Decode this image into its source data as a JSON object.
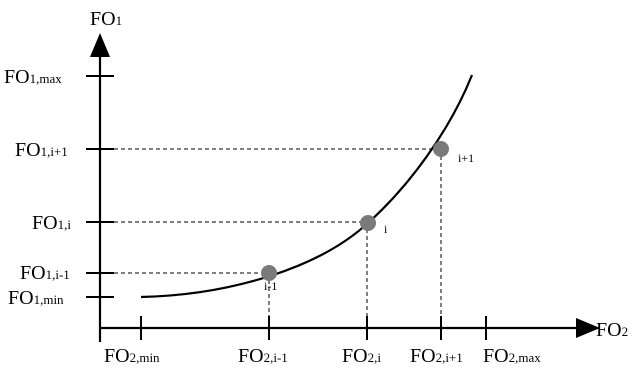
{
  "axes": {
    "y": {
      "main": "FO",
      "sub": "1"
    },
    "x": {
      "main": "FO",
      "sub": "2"
    }
  },
  "y_ticks": [
    {
      "main": "FO",
      "sub": "1,max"
    },
    {
      "main": "FO",
      "sub": "1,i+1"
    },
    {
      "main": "FO",
      "sub": "1,i"
    },
    {
      "main": "FO",
      "sub": "1,i-1"
    },
    {
      "main": "FO",
      "sub": "1,min"
    }
  ],
  "x_ticks": [
    {
      "main": "FO",
      "sub": "2,min"
    },
    {
      "main": "FO",
      "sub": "2,i-1"
    },
    {
      "main": "FO",
      "sub": "2,i"
    },
    {
      "main": "FO",
      "sub": "2,i+1"
    },
    {
      "main": "FO",
      "sub": "2,max"
    }
  ],
  "points": [
    {
      "label": "i-1"
    },
    {
      "label": "i"
    },
    {
      "label": "i+1"
    }
  ],
  "colors": {
    "point": "#7a7a7a",
    "line": "#000000"
  }
}
